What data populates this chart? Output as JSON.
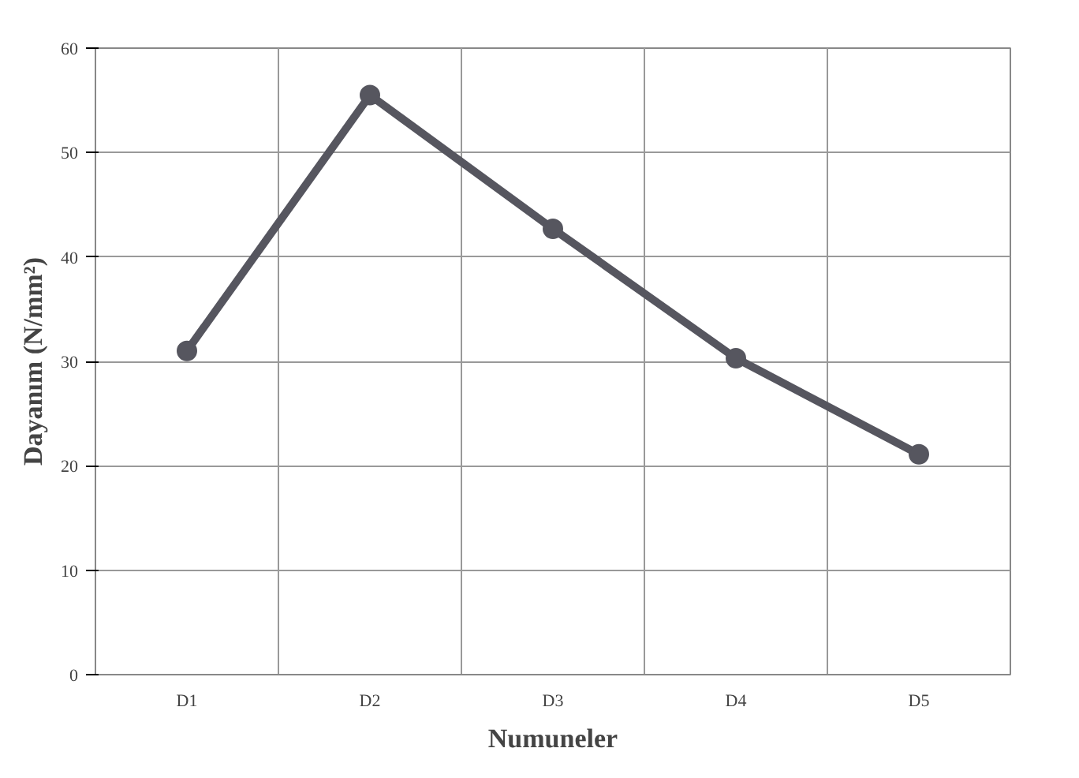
{
  "chart_data": {
    "type": "line",
    "xlabel": "Numuneler",
    "ylabel": "Dayanım (N/mm²)",
    "categories": [
      "D1",
      "D2",
      "D3",
      "D4",
      "D5"
    ],
    "series": [
      {
        "color": "#56565f",
        "values": [
          31.0,
          55.5,
          42.7,
          30.3,
          21.1
        ]
      }
    ],
    "ylim": [
      0,
      60
    ],
    "yticks": [
      0,
      10,
      20,
      30,
      40,
      50,
      60
    ],
    "grid": true,
    "marker": "circle",
    "line_style": "solid"
  }
}
